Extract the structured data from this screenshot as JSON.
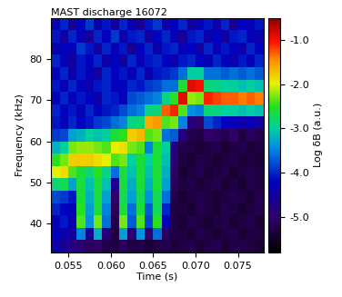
{
  "chart_data": {
    "type": "heatmap",
    "title": "MAST discharge 16072",
    "x_label": "Time (s)",
    "y_label": "Frequency (kHz)",
    "x_edges": [
      0.053,
      0.054,
      0.055,
      0.056,
      0.057,
      0.058,
      0.059,
      0.06,
      0.061,
      0.062,
      0.063,
      0.064,
      0.065,
      0.066,
      0.067,
      0.068,
      0.069,
      0.07,
      0.071,
      0.072,
      0.073,
      0.074,
      0.075,
      0.076,
      0.077,
      0.078
    ],
    "y_edges": [
      33,
      36,
      39,
      42,
      45,
      48,
      51,
      54,
      57,
      60,
      63,
      66,
      69,
      72,
      75,
      78,
      81,
      84,
      87,
      90
    ],
    "cells": [
      [
        -4.4,
        -4.6,
        -4.8,
        -4.9,
        -5.1,
        -5.0,
        -5.2,
        -5.3,
        -5.1,
        -5.3,
        -5.2,
        -5.4,
        -5.3,
        -5.2,
        -5.4,
        -5.3,
        -5.2,
        -5.4,
        -5.3,
        -5.2,
        -5.4,
        -5.3,
        -5.2,
        -5.3,
        -5.4
      ],
      [
        -4.2,
        -4.4,
        -4.5,
        -3.5,
        -4.6,
        -3.2,
        -4.8,
        -5.3,
        -3.3,
        -4.9,
        -3.4,
        -5.0,
        -3.6,
        -5.1,
        -5.3,
        -5.3,
        -5.4,
        -5.2,
        -5.3,
        -5.4,
        -5.3,
        -5.2,
        -5.4,
        -5.3,
        -5.3
      ],
      [
        -4.3,
        -4.1,
        -4.4,
        -2.4,
        -3.4,
        -2.3,
        -3.6,
        -5.2,
        -2.3,
        -3.7,
        -2.4,
        -3.8,
        -2.5,
        -4.3,
        -5.3,
        -5.4,
        -5.2,
        -5.3,
        -5.4,
        -5.3,
        -5.2,
        -5.4,
        -5.3,
        -5.2,
        -5.4
      ],
      [
        -4.0,
        -4.2,
        -4.3,
        -2.5,
        -3.3,
        -2.6,
        -3.5,
        -5.1,
        -2.6,
        -3.6,
        -2.6,
        -3.7,
        -2.7,
        -4.0,
        -5.3,
        -5.3,
        -5.4,
        -5.2,
        -5.3,
        -5.4,
        -5.2,
        -5.3,
        -5.4,
        -5.3,
        -5.2
      ],
      [
        -3.8,
        -3.9,
        -4.1,
        -2.6,
        -3.2,
        -2.6,
        -3.3,
        -5.0,
        -2.7,
        -3.3,
        -2.7,
        -3.4,
        -2.7,
        -3.6,
        -5.2,
        -5.4,
        -5.3,
        -5.2,
        -5.3,
        -5.4,
        -5.3,
        -5.2,
        -5.3,
        -5.4,
        -5.2
      ],
      [
        -2.8,
        -2.7,
        -3.3,
        -2.6,
        -3.1,
        -2.6,
        -3.1,
        -4.6,
        -2.6,
        -3.2,
        -2.6,
        -3.2,
        -2.6,
        -3.3,
        -5.1,
        -5.3,
        -5.2,
        -5.4,
        -5.3,
        -5.2,
        -5.4,
        -5.3,
        -5.4,
        -5.2,
        -5.3
      ],
      [
        -2.0,
        -1.9,
        -2.4,
        -2.6,
        -2.8,
        -2.5,
        -2.9,
        -3.6,
        -2.6,
        -3.1,
        -2.6,
        -3.1,
        -2.6,
        -3.2,
        -5.0,
        -5.4,
        -5.3,
        -5.2,
        -5.4,
        -5.3,
        -5.2,
        -5.4,
        -5.3,
        -5.2,
        -5.3
      ],
      [
        -2.5,
        -2.3,
        -1.8,
        -1.8,
        -1.8,
        -1.9,
        -2.0,
        -2.4,
        -2.3,
        -3.0,
        -2.6,
        -3.0,
        -2.6,
        -3.1,
        -4.9,
        -5.3,
        -5.4,
        -5.2,
        -5.3,
        -5.4,
        -5.3,
        -5.2,
        -5.4,
        -5.3,
        -5.4
      ],
      [
        -3.2,
        -3.0,
        -2.3,
        -2.2,
        -2.2,
        -2.3,
        -2.4,
        -2.0,
        -1.9,
        -2.3,
        -2.4,
        -3.5,
        -2.6,
        -3.0,
        -4.8,
        -5.2,
        -5.3,
        -5.4,
        -5.3,
        -5.2,
        -5.4,
        -5.3,
        -5.2,
        -5.4,
        -5.3
      ],
      [
        -3.9,
        -3.8,
        -3.3,
        -3.2,
        -3.0,
        -3.1,
        -3.0,
        -2.6,
        -2.5,
        -1.8,
        -1.7,
        -2.4,
        -2.3,
        -3.6,
        -3.7,
        -4.8,
        -5.2,
        -5.3,
        -5.0,
        -5.1,
        -5.2,
        -5.0,
        -5.3,
        -5.1,
        -5.2
      ],
      [
        -4.1,
        -4.3,
        -4.0,
        -4.2,
        -4.1,
        -3.9,
        -3.8,
        -3.6,
        -3.5,
        -2.9,
        -2.8,
        -1.6,
        -1.5,
        -2.4,
        -2.3,
        -3.5,
        -4.8,
        -5.0,
        -3.8,
        -4.0,
        -4.2,
        -4.3,
        -4.4,
        -4.3,
        -4.5
      ],
      [
        -4.0,
        -4.2,
        -4.1,
        -4.3,
        -4.0,
        -4.2,
        -4.1,
        -4.0,
        -3.8,
        -3.6,
        -3.5,
        -2.9,
        -2.8,
        -1.3,
        -1.1,
        -2.4,
        -3.4,
        -3.5,
        -2.8,
        -2.9,
        -3.0,
        -3.0,
        -3.1,
        -3.0,
        -3.1
      ],
      [
        -4.2,
        -4.0,
        -4.3,
        -4.1,
        -4.2,
        -4.4,
        -4.0,
        -4.1,
        -4.3,
        -3.8,
        -3.7,
        -3.6,
        -3.5,
        -2.9,
        -2.5,
        -0.9,
        -2.2,
        -2.3,
        -1.1,
        -1.2,
        -1.3,
        -1.3,
        -1.4,
        -1.3,
        -1.4
      ],
      [
        -4.1,
        -4.3,
        -4.0,
        -4.2,
        -4.4,
        -4.1,
        -4.0,
        -4.3,
        -4.2,
        -4.0,
        -4.1,
        -3.9,
        -3.8,
        -3.6,
        -3.6,
        -2.6,
        -0.9,
        -1.0,
        -2.8,
        -2.9,
        -3.0,
        -3.0,
        -3.1,
        -3.0,
        -3.1
      ],
      [
        -4.2,
        -4.0,
        -4.4,
        -4.1,
        -4.3,
        -4.5,
        -4.0,
        -4.2,
        -4.1,
        -4.3,
        -4.0,
        -4.4,
        -4.1,
        -4.0,
        -3.9,
        -3.6,
        -3.0,
        -3.0,
        -3.6,
        -3.6,
        -3.7,
        -3.6,
        -3.7,
        -3.6,
        -3.7
      ],
      [
        -4.0,
        -4.3,
        -4.5,
        -4.1,
        -4.2,
        -4.0,
        -4.4,
        -4.2,
        -4.5,
        -4.0,
        -4.3,
        -4.1,
        -4.0,
        -4.2,
        -4.4,
        -4.1,
        -4.0,
        -4.2,
        -4.3,
        -4.0,
        -4.2,
        -4.4,
        -4.1,
        -4.3,
        -4.0
      ],
      [
        -4.4,
        -4.2,
        -4.3,
        -3.9,
        -4.1,
        -4.5,
        -4.0,
        -4.3,
        -4.1,
        -4.6,
        -4.2,
        -4.0,
        -4.4,
        -4.1,
        -4.0,
        -4.3,
        -4.2,
        -4.5,
        -4.0,
        -4.3,
        -4.1,
        -4.2,
        -4.4,
        -4.0,
        -4.2
      ],
      [
        -4.1,
        -4.5,
        -4.0,
        -4.3,
        -4.6,
        -4.0,
        -4.2,
        -3.9,
        -4.4,
        -4.1,
        -4.0,
        -4.5,
        -4.2,
        -4.0,
        -4.3,
        -4.6,
        -4.1,
        -4.0,
        -4.4,
        -4.2,
        -4.5,
        -4.1,
        -4.0,
        -4.3,
        -4.4
      ],
      [
        -4.3,
        -4.0,
        -4.6,
        -4.2,
        -3.9,
        -4.4,
        -4.1,
        -4.5,
        -4.0,
        -4.3,
        -4.6,
        -4.1,
        -3.9,
        -4.4,
        -4.2,
        -4.0,
        -4.5,
        -4.3,
        -4.1,
        -4.4,
        -4.0,
        -4.6,
        -4.2,
        -4.3,
        -4.1
      ]
    ],
    "xlim": [
      0.053,
      0.078
    ],
    "xticks": [
      {
        "value": 0.055,
        "label": "0.055"
      },
      {
        "value": 0.06,
        "label": "0.060"
      },
      {
        "value": 0.065,
        "label": "0.065"
      },
      {
        "value": 0.07,
        "label": "0.070"
      },
      {
        "value": 0.075,
        "label": "0.075"
      }
    ],
    "ylim": [
      33,
      90
    ],
    "yticks": [
      40,
      50,
      60,
      70,
      80
    ],
    "colorbar_label": "Log δB (a.u.)",
    "colorbar_range": [
      -5.8,
      -0.5
    ],
    "colorbar_ticks": [
      {
        "value": -1.0,
        "label": "-1.0"
      },
      {
        "value": -2.0,
        "label": "-2.0"
      },
      {
        "value": -3.0,
        "label": "-3.0"
      },
      {
        "value": -4.0,
        "label": "-4.0"
      },
      {
        "value": -5.0,
        "label": "-5.0"
      }
    ]
  }
}
